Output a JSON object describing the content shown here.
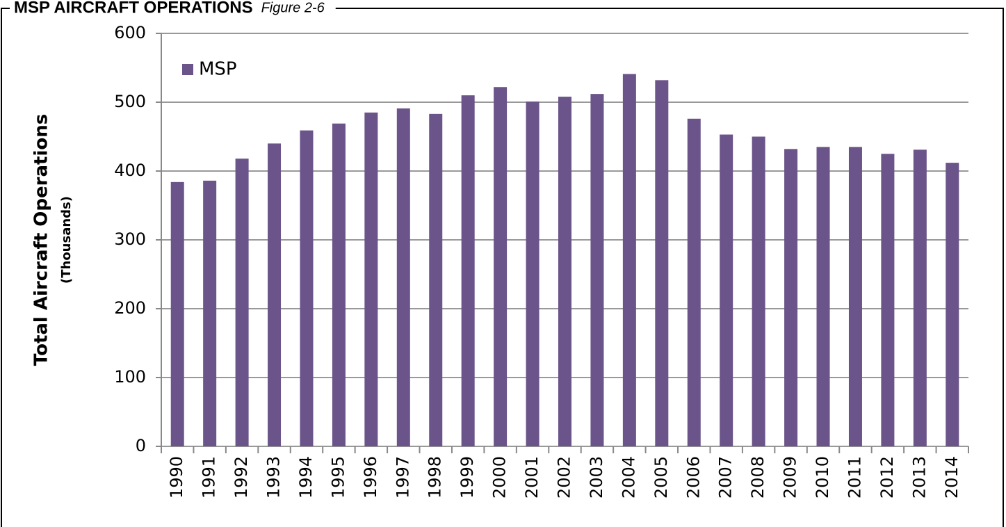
{
  "chart_data": {
    "type": "bar",
    "title": "MSP AIRCRAFT OPERATIONS",
    "subtitle": "Figure 2-6",
    "y_label": "Total Aircraft Operations",
    "y_label_units": "(Thousands)",
    "categories": [
      "1990",
      "1991",
      "1992",
      "1993",
      "1994",
      "1995",
      "1996",
      "1997",
      "1998",
      "1999",
      "2000",
      "2001",
      "2002",
      "2003",
      "2004",
      "2005",
      "2006",
      "2007",
      "2008",
      "2009",
      "2010",
      "2011",
      "2012",
      "2013",
      "2014"
    ],
    "series": [
      {
        "name": "MSP",
        "color": "#6b5489",
        "values": [
          384,
          386,
          418,
          440,
          459,
          469,
          485,
          491,
          483,
          510,
          522,
          501,
          508,
          512,
          541,
          532,
          476,
          453,
          450,
          432,
          435,
          435,
          425,
          431,
          412
        ]
      }
    ],
    "ylim": [
      0,
      600
    ],
    "yticks": [
      0,
      100,
      200,
      300,
      400,
      500,
      600
    ],
    "grid": true,
    "legend": "upper left"
  }
}
